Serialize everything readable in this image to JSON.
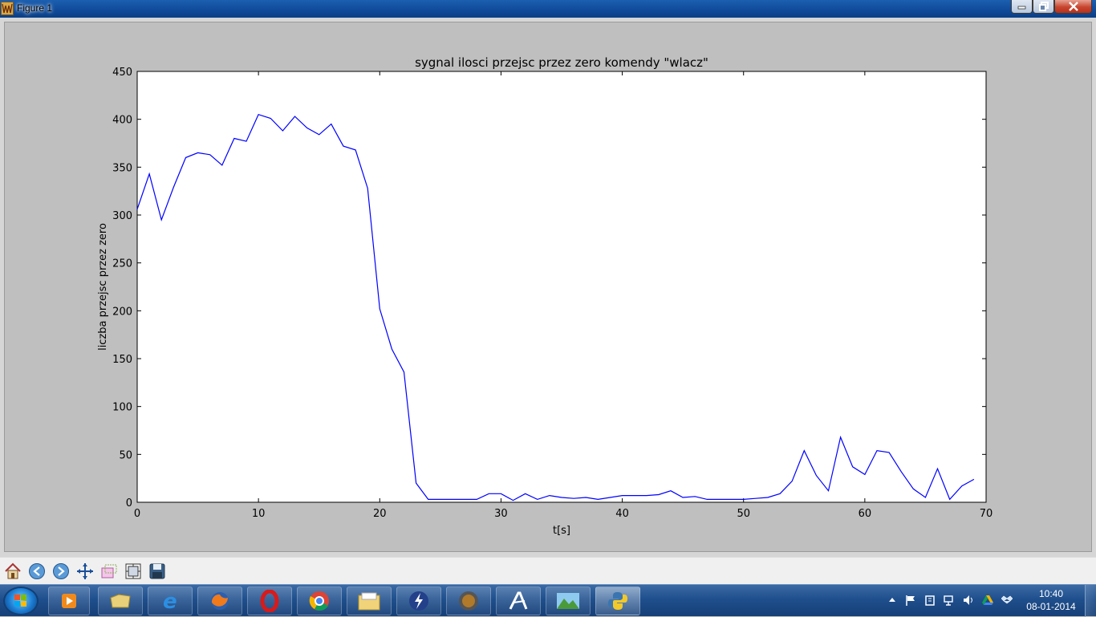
{
  "window": {
    "title": "Figure 1"
  },
  "chart_data": {
    "type": "line",
    "title": "sygnal ilosci przejsc przez zero komendy \"wlacz\"",
    "xlabel": "t[s]",
    "ylabel": "liczba przejsc przez zero",
    "xlim": [
      0,
      70
    ],
    "ylim": [
      0,
      450
    ],
    "xticks": [
      0,
      10,
      20,
      30,
      40,
      50,
      60,
      70
    ],
    "yticks": [
      0,
      50,
      100,
      150,
      200,
      250,
      300,
      350,
      400,
      450
    ],
    "grid": false,
    "series": [
      {
        "color": "#0000ff",
        "x": [
          0,
          1,
          2,
          3,
          4,
          5,
          6,
          7,
          8,
          9,
          10,
          11,
          12,
          13,
          14,
          15,
          16,
          17,
          18,
          19,
          20,
          21,
          22,
          23,
          24,
          25,
          26,
          27,
          28,
          29,
          30,
          31,
          32,
          33,
          34,
          35,
          36,
          37,
          38,
          39,
          40,
          41,
          42,
          43,
          44,
          45,
          46,
          47,
          48,
          49,
          50,
          51,
          52,
          53,
          54,
          55,
          56,
          57,
          58,
          59,
          60,
          61,
          62,
          63,
          64,
          65,
          66,
          67,
          68,
          69
        ],
        "y": [
          306,
          343,
          295,
          329,
          360,
          365,
          363,
          352,
          380,
          377,
          405,
          401,
          388,
          403,
          391,
          384,
          395,
          372,
          368,
          328,
          202,
          160,
          136,
          20,
          3,
          3,
          3,
          3,
          3,
          9,
          9,
          2,
          9,
          3,
          7,
          5,
          4,
          5,
          3,
          5,
          7,
          7,
          7,
          8,
          12,
          5,
          6,
          3,
          3,
          3,
          3,
          4,
          5,
          9,
          22,
          54,
          28,
          12,
          68,
          37,
          29,
          54,
          52,
          32,
          14,
          5,
          35,
          3,
          17,
          24
        ]
      }
    ]
  },
  "toolbar": {
    "buttons": [
      {
        "name": "home-button",
        "icon": "home-icon"
      },
      {
        "name": "back-button",
        "icon": "arrow-left-icon"
      },
      {
        "name": "forward-button",
        "icon": "arrow-right-icon"
      },
      {
        "name": "pan-button",
        "icon": "move-icon"
      },
      {
        "name": "zoom-button",
        "icon": "zoom-rect-icon"
      },
      {
        "name": "subplots-button",
        "icon": "subplots-icon"
      },
      {
        "name": "save-button",
        "icon": "floppy-icon"
      }
    ]
  },
  "taskbar": {
    "items": [
      "media-player-icon",
      "file-explorer-icon",
      "internet-explorer-icon",
      "firefox-icon",
      "opera-icon",
      "chrome-icon",
      "folder-icon",
      "lightning-app-icon",
      "java-ee-ide-icon",
      "autocad-icon",
      "landscape-app-icon",
      "python-icon"
    ],
    "active_item": "python-icon",
    "tray_icons": [
      "show-hidden-icon",
      "action-center-flag-icon",
      "devices-icon",
      "network-icon",
      "volume-icon",
      "google-drive-icon",
      "dropbox-icon"
    ],
    "clock": {
      "time": "10:40",
      "date": "08-01-2014"
    }
  }
}
